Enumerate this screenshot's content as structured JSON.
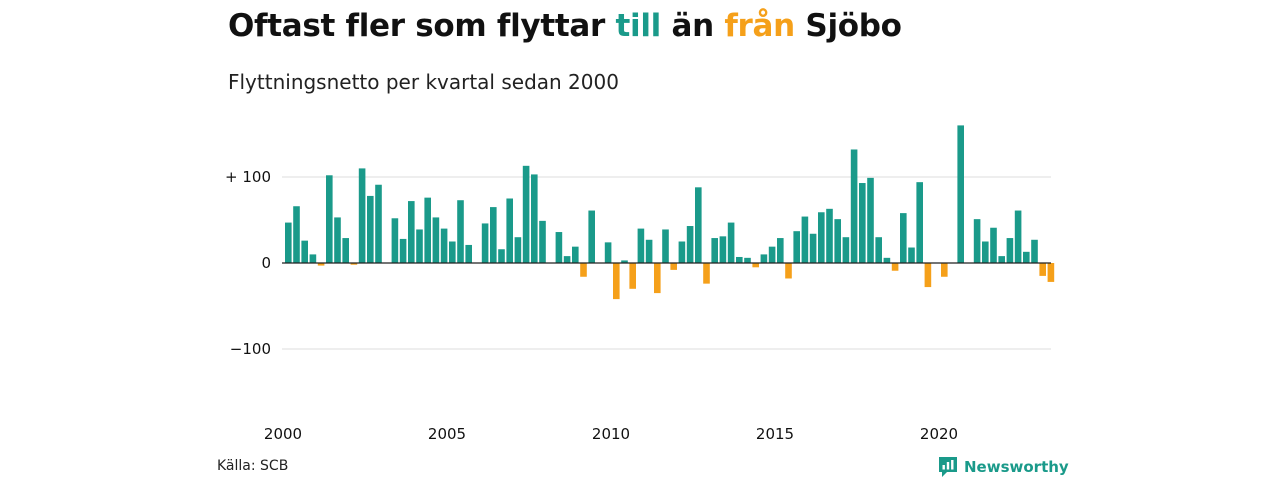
{
  "title": {
    "part1": "Oftast fler som flyttar ",
    "till": "till",
    "part2": " än ",
    "fran": "från",
    "part3": " Sjöbo"
  },
  "subtitle": "Flyttningsnetto per kvartal sedan 2000",
  "source": "Källa: SCB",
  "brand": "Newsworthy",
  "colors": {
    "positive": "#1a9a8a",
    "negative": "#f5a01a",
    "grid": "#dddddd",
    "baseline": "#222222"
  },
  "chart_data": {
    "type": "bar",
    "title": "Oftast fler som flyttar till än från Sjöbo",
    "subtitle": "Flyttningsnetto per kvartal sedan 2000",
    "x_start": "2000 Q1",
    "x_tick_labels": [
      "2000",
      "2005",
      "2010",
      "2015",
      "2020"
    ],
    "y_tick_labels": [
      "+ 100",
      "0",
      "−100"
    ],
    "y_ticks": [
      100,
      0,
      -100
    ],
    "ylim": [
      -130,
      165
    ],
    "grid": true,
    "values": [
      47,
      66,
      26,
      10,
      -3,
      102,
      53,
      29,
      -2,
      110,
      78,
      91,
      0,
      52,
      28,
      72,
      39,
      76,
      53,
      40,
      25,
      73,
      21,
      0,
      46,
      65,
      16,
      75,
      30,
      113,
      103,
      49,
      0,
      36,
      8,
      19,
      -16,
      61,
      0,
      24,
      -42,
      3,
      -30,
      40,
      27,
      -35,
      39,
      -8,
      25,
      43,
      88,
      -24,
      29,
      31,
      47,
      7,
      6,
      -5,
      10,
      19,
      29,
      -18,
      37,
      54,
      34,
      59,
      63,
      51,
      30,
      132,
      93,
      99,
      30,
      6,
      -9,
      58,
      18,
      94,
      -28,
      0,
      -16,
      0,
      160,
      0,
      51,
      25,
      41,
      8,
      29,
      61,
      13,
      27,
      -15,
      -22
    ]
  }
}
